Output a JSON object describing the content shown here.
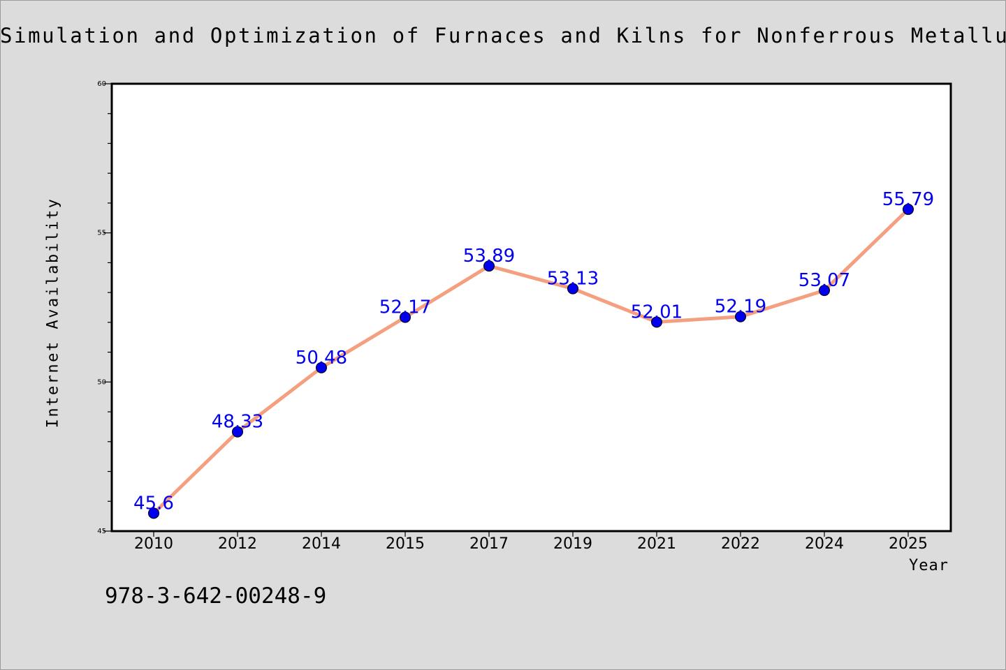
{
  "chart_data": {
    "type": "line",
    "title": "Simulation and Optimization of Furnaces and Kilns for Nonferrous Metallurgical E",
    "xlabel": "Year",
    "ylabel": "Internet Availability",
    "categories": [
      "2010",
      "2012",
      "2014",
      "2015",
      "2017",
      "2019",
      "2021",
      "2022",
      "2024",
      "2025"
    ],
    "values": [
      45.6,
      48.33,
      50.48,
      52.17,
      53.89,
      53.13,
      52.01,
      52.19,
      53.07,
      55.79
    ],
    "data_labels": [
      "45.6",
      "48.33",
      "50.48",
      "52.17",
      "53.89",
      "53.13",
      "52.01",
      "52.19",
      "53.07",
      "55.79"
    ],
    "ylim": [
      45,
      60
    ],
    "yticks": [
      "45",
      "50",
      "55",
      "60"
    ],
    "grid": false,
    "line_color": "#f4a080",
    "marker_color": "#0000ee",
    "label_color": "#0000ee"
  },
  "footer": {
    "isbn": "978-3-642-00248-9"
  }
}
